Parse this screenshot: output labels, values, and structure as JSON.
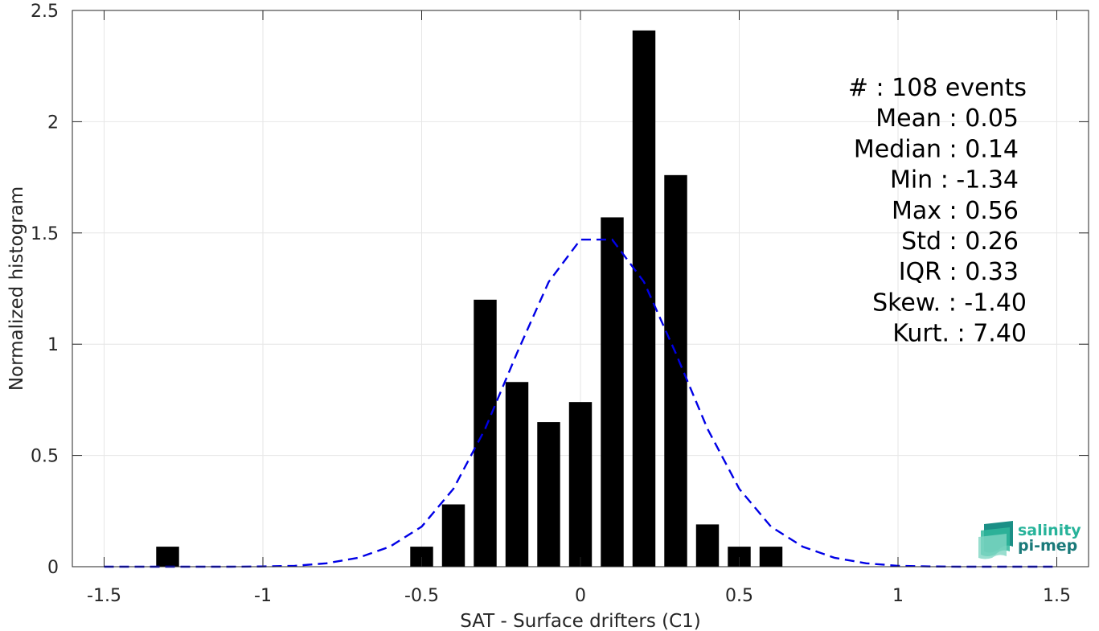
{
  "chart_data": {
    "type": "bar",
    "title": "",
    "xlabel": "SAT - Surface drifters (C1)",
    "ylabel": "Normalized histogram",
    "xlim": [
      -1.6,
      1.6
    ],
    "ylim": [
      0,
      2.5
    ],
    "x_ticks": [
      -1.5,
      -1,
      -0.5,
      0,
      0.5,
      1,
      1.5
    ],
    "x_tick_labels": [
      "-1.5",
      "-1",
      "-0.5",
      "0",
      "0.5",
      "1",
      "1.5"
    ],
    "y_ticks": [
      0,
      0.5,
      1,
      1.5,
      2,
      2.5
    ],
    "y_tick_labels": [
      "0",
      "0.5",
      "1",
      "1.5",
      "2",
      "2.5"
    ],
    "grid": true,
    "bin_width": 0.1,
    "bars": [
      {
        "x": -1.3,
        "value": 0.09
      },
      {
        "x": -0.5,
        "value": 0.09
      },
      {
        "x": -0.4,
        "value": 0.28
      },
      {
        "x": -0.3,
        "value": 1.2
      },
      {
        "x": -0.2,
        "value": 0.83
      },
      {
        "x": -0.1,
        "value": 0.65
      },
      {
        "x": 0.0,
        "value": 0.74
      },
      {
        "x": 0.1,
        "value": 1.57
      },
      {
        "x": 0.2,
        "value": 2.41
      },
      {
        "x": 0.3,
        "value": 1.76
      },
      {
        "x": 0.4,
        "value": 0.19
      },
      {
        "x": 0.5,
        "value": 0.09
      },
      {
        "x": 0.6,
        "value": 0.09
      }
    ],
    "fit_curve": {
      "style": "dashed",
      "color": "#0000e6",
      "x": [
        -1.5,
        -1.4,
        -1.3,
        -1.2,
        -1.1,
        -1.0,
        -0.9,
        -0.8,
        -0.7,
        -0.6,
        -0.5,
        -0.4,
        -0.3,
        -0.2,
        -0.1,
        0.0,
        0.1,
        0.2,
        0.3,
        0.4,
        0.5,
        0.6,
        0.7,
        0.8,
        0.9,
        1.0,
        1.1,
        1.2,
        1.3,
        1.4,
        1.5
      ],
      "y": [
        0.0,
        0.0,
        0.0,
        0.0,
        0.0,
        0.001,
        0.004,
        0.015,
        0.04,
        0.09,
        0.18,
        0.35,
        0.62,
        0.96,
        1.28,
        1.47,
        1.47,
        1.28,
        0.96,
        0.62,
        0.35,
        0.18,
        0.09,
        0.04,
        0.015,
        0.004,
        0.001,
        0.0,
        0.0,
        0.0,
        0.0
      ]
    },
    "bar_color": "#000000",
    "stats": [
      "#  : 108 events",
      "Mean : 0.05",
      "Median : 0.14",
      "Min : -1.34",
      "Max : 0.56",
      "Std : 0.26",
      "IQR : 0.33",
      "Skew. : -1.40",
      "Kurt. : 7.40"
    ]
  },
  "logo": {
    "line1": "salinity",
    "line2": "pi-mep",
    "color1": "#27b39a",
    "color2": "#1a7a7a"
  }
}
